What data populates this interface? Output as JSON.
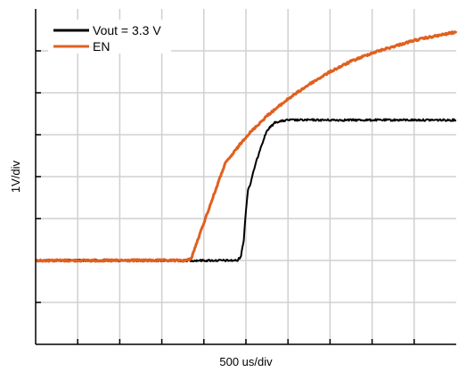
{
  "chart_data": {
    "type": "line",
    "xlabel": "500 us/div",
    "ylabel": "1V/div",
    "xlim": [
      0,
      10
    ],
    "ylim": [
      0,
      8
    ],
    "grid": true,
    "legend_position": "top-left",
    "series": [
      {
        "name": "Vout = 3.3 V",
        "color": "#000000",
        "x": [
          0,
          1,
          2,
          3,
          3.5,
          3.7,
          4.0,
          4.8,
          4.88,
          4.95,
          5.0,
          5.05,
          5.1,
          5.2,
          5.35,
          5.5,
          5.7,
          6.0,
          7.0,
          8.0,
          9.0,
          10.0
        ],
        "y": [
          2.0,
          2.0,
          2.0,
          2.0,
          2.0,
          2.0,
          2.0,
          2.0,
          2.1,
          2.5,
          3.2,
          3.7,
          3.8,
          4.2,
          4.7,
          5.1,
          5.3,
          5.35,
          5.35,
          5.35,
          5.35,
          5.35
        ]
      },
      {
        "name": "EN",
        "color": "#e0601f",
        "x": [
          0,
          1,
          2,
          3,
          3.6,
          3.7,
          4.0,
          4.5,
          5.0,
          5.5,
          6.0,
          6.5,
          7.0,
          7.5,
          8.0,
          8.5,
          9.0,
          9.5,
          10.0
        ],
        "y": [
          2.0,
          2.0,
          2.0,
          2.0,
          2.0,
          2.05,
          2.9,
          4.3,
          4.95,
          5.45,
          5.85,
          6.2,
          6.5,
          6.75,
          6.95,
          7.1,
          7.25,
          7.35,
          7.45
        ]
      }
    ]
  }
}
